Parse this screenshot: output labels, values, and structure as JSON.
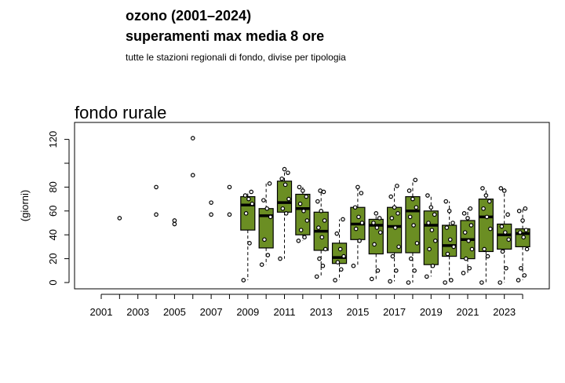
{
  "title": "ozono (2001–2024)",
  "subtitle": "superamenti max media 8 ore",
  "caption": "tutte le stazioni regionali di fondo, divise per tipologia",
  "panel_title": "fondo rurale",
  "colors": {
    "box_fill": "#6b8e23",
    "stroke": "#000000"
  },
  "chart_data": {
    "type": "box",
    "ylabel": "(giorni)",
    "ylim": [
      -5,
      135
    ],
    "yticks": [
      0,
      20,
      40,
      60,
      80,
      120
    ],
    "years": [
      2001,
      2002,
      2003,
      2004,
      2005,
      2006,
      2007,
      2008,
      2009,
      2010,
      2011,
      2012,
      2013,
      2014,
      2015,
      2016,
      2017,
      2018,
      2019,
      2020,
      2021,
      2022,
      2023,
      2024
    ],
    "xtick_labels": [
      "2001",
      "2003",
      "2005",
      "2007",
      "2009",
      "2011",
      "2013",
      "2015",
      "2017",
      "2019",
      "2021",
      "2023"
    ],
    "grid": false,
    "boxes": [
      {
        "year": 2009,
        "q1": 44,
        "median": 65,
        "q3": 72
      },
      {
        "year": 2010,
        "q1": 29,
        "median": 56,
        "q3": 62
      },
      {
        "year": 2011,
        "q1": 59,
        "median": 67,
        "q3": 85
      },
      {
        "year": 2012,
        "q1": 40,
        "median": 62,
        "q3": 74
      },
      {
        "year": 2013,
        "q1": 27,
        "median": 43,
        "q3": 59
      },
      {
        "year": 2014,
        "q1": 16,
        "median": 21,
        "q3": 33
      },
      {
        "year": 2015,
        "q1": 36,
        "median": 49,
        "q3": 63
      },
      {
        "year": 2016,
        "q1": 24,
        "median": 48,
        "q3": 53
      },
      {
        "year": 2017,
        "q1": 25,
        "median": 47,
        "q3": 63
      },
      {
        "year": 2018,
        "q1": 25,
        "median": 60,
        "q3": 72
      },
      {
        "year": 2019,
        "q1": 15,
        "median": 48,
        "q3": 60
      },
      {
        "year": 2020,
        "q1": 22,
        "median": 31,
        "q3": 48
      },
      {
        "year": 2021,
        "q1": 20,
        "median": 36,
        "q3": 52
      },
      {
        "year": 2022,
        "q1": 26,
        "median": 55,
        "q3": 70
      },
      {
        "year": 2023,
        "q1": 28,
        "median": 40,
        "q3": 49
      },
      {
        "year": 2024,
        "q1": 30,
        "median": 41,
        "q3": 45
      }
    ],
    "points": [
      {
        "year": 2002,
        "values": [
          54
        ]
      },
      {
        "year": 2004,
        "values": [
          57,
          80
        ]
      },
      {
        "year": 2005,
        "values": [
          49,
          52
        ]
      },
      {
        "year": 2006,
        "values": [
          90,
          121
        ]
      },
      {
        "year": 2007,
        "values": [
          57,
          67
        ]
      },
      {
        "year": 2008,
        "values": [
          57,
          80
        ]
      },
      {
        "year": 2009,
        "values": [
          2,
          33,
          58,
          66,
          70,
          73,
          76
        ]
      },
      {
        "year": 2010,
        "values": [
          15,
          23,
          36,
          55,
          62,
          69,
          83
        ]
      },
      {
        "year": 2011,
        "values": [
          20,
          58,
          62,
          70,
          82,
          87,
          92,
          95
        ]
      },
      {
        "year": 2012,
        "values": [
          35,
          38,
          44,
          52,
          60,
          66,
          72,
          77,
          80
        ]
      },
      {
        "year": 2013,
        "values": [
          5,
          14,
          20,
          28,
          38,
          46,
          52,
          60,
          68,
          76,
          77
        ]
      },
      {
        "year": 2014,
        "values": [
          2,
          11,
          17,
          22,
          28,
          41,
          53
        ]
      },
      {
        "year": 2015,
        "values": [
          14,
          35,
          45,
          50,
          55,
          63,
          75,
          80
        ]
      },
      {
        "year": 2016,
        "values": [
          3,
          10,
          32,
          42,
          46,
          50,
          54,
          58
        ]
      },
      {
        "year": 2017,
        "values": [
          1,
          10,
          22,
          30,
          46,
          54,
          58,
          63,
          72,
          81
        ]
      },
      {
        "year": 2018,
        "values": [
          0,
          10,
          20,
          33,
          48,
          55,
          63,
          70,
          77,
          86
        ]
      },
      {
        "year": 2019,
        "values": [
          5,
          14,
          28,
          35,
          44,
          50,
          57,
          63,
          73
        ]
      },
      {
        "year": 2020,
        "values": [
          0,
          2,
          24,
          30,
          36,
          46,
          50,
          60,
          68
        ]
      },
      {
        "year": 2021,
        "values": [
          8,
          12,
          20,
          28,
          35,
          42,
          48,
          54,
          58,
          62
        ]
      },
      {
        "year": 2022,
        "values": [
          0,
          22,
          28,
          45,
          55,
          62,
          68,
          73,
          79
        ]
      },
      {
        "year": 2023,
        "values": [
          0,
          12,
          26,
          36,
          42,
          47,
          57,
          77,
          79
        ]
      },
      {
        "year": 2024,
        "values": [
          2,
          6,
          12,
          28,
          38,
          42,
          44,
          52,
          60,
          62
        ]
      }
    ]
  }
}
